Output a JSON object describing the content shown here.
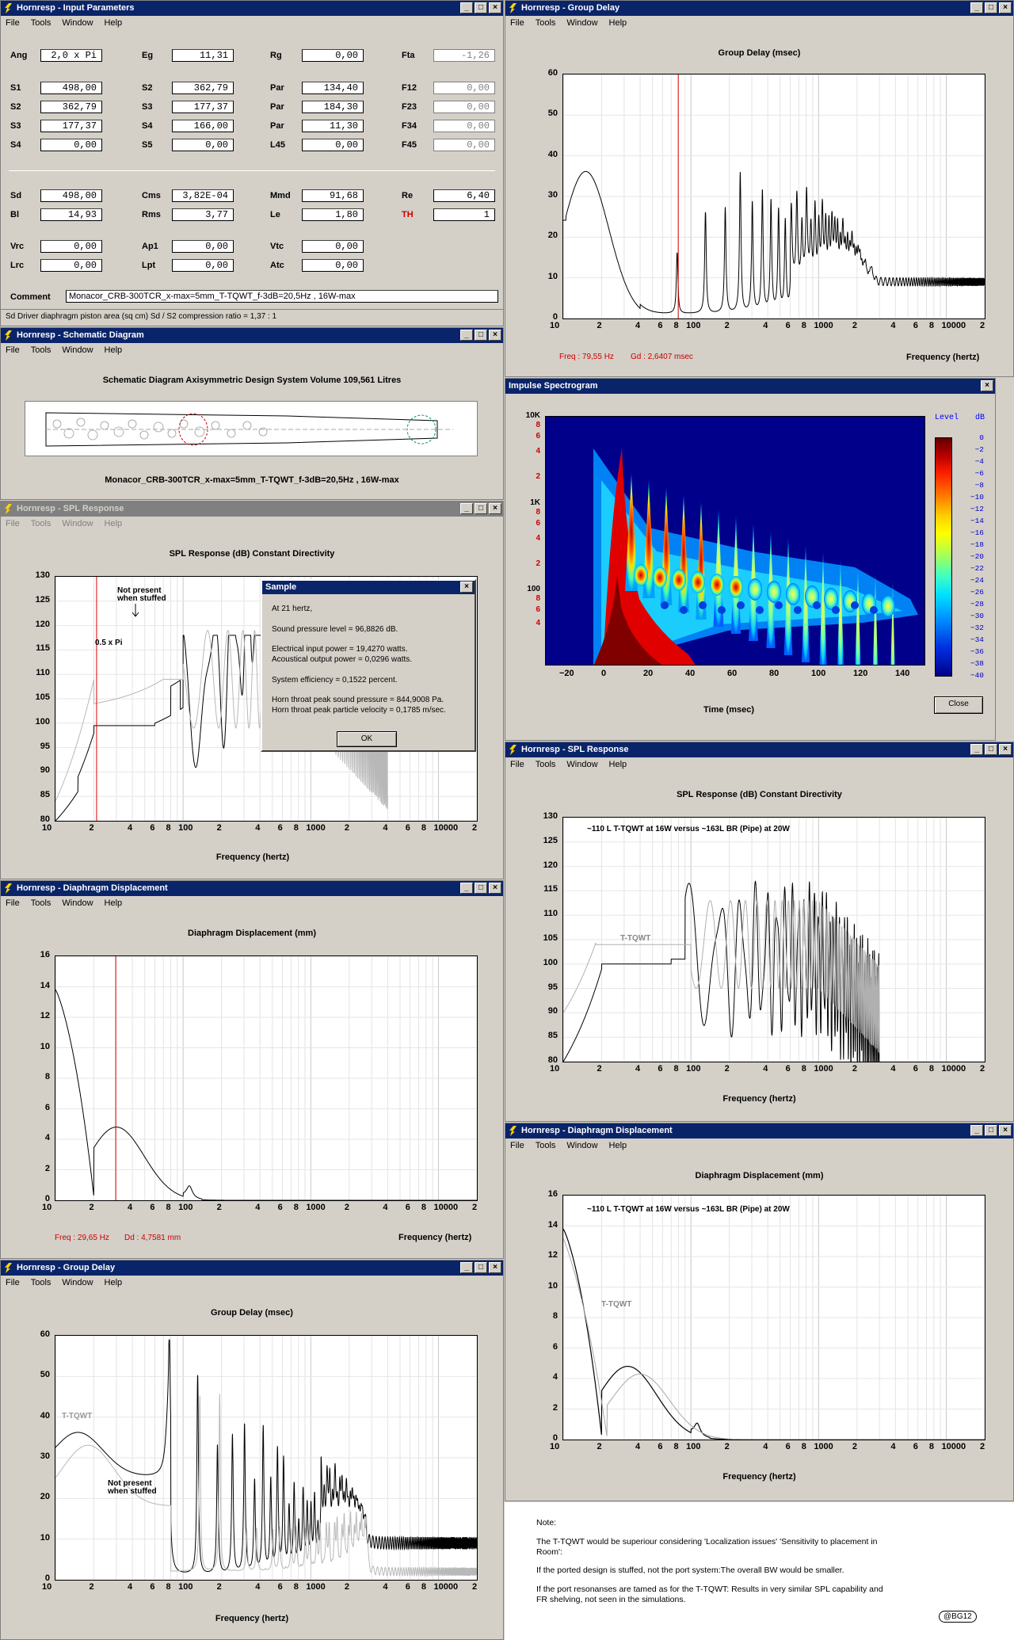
{
  "menu": [
    "File",
    "Tools",
    "Window",
    "Help"
  ],
  "win_btns": [
    "_",
    "□",
    "×"
  ],
  "input": {
    "title": "Hornresp - Input Parameters",
    "rows1": [
      [
        {
          "l": "Ang",
          "v": "2,0 x Pi"
        },
        {
          "l": "Eg",
          "v": "11,31"
        },
        {
          "l": "Rg",
          "v": "0,00"
        },
        {
          "l": "Fta",
          "v": "-1,26",
          "dis": true
        }
      ],
      [
        {
          "l": "S1",
          "v": "498,00"
        },
        {
          "l": "S2",
          "v": "362,79"
        },
        {
          "l": "Par",
          "v": "134,40"
        },
        {
          "l": "F12",
          "v": "0,00",
          "dis": true
        }
      ],
      [
        {
          "l": "S2",
          "v": "362,79"
        },
        {
          "l": "S3",
          "v": "177,37"
        },
        {
          "l": "Par",
          "v": "184,30"
        },
        {
          "l": "F23",
          "v": "0,00",
          "dis": true
        }
      ],
      [
        {
          "l": "S3",
          "v": "177,37"
        },
        {
          "l": "S4",
          "v": "166,00"
        },
        {
          "l": "Par",
          "v": "11,30"
        },
        {
          "l": "F34",
          "v": "0,00",
          "dis": true
        }
      ],
      [
        {
          "l": "S4",
          "v": "0,00"
        },
        {
          "l": "S5",
          "v": "0,00"
        },
        {
          "l": "L45",
          "v": "0,00"
        },
        {
          "l": "F45",
          "v": "0,00",
          "dis": true
        }
      ]
    ],
    "rows2": [
      [
        {
          "l": "Sd",
          "v": "498,00"
        },
        {
          "l": "Cms",
          "v": "3,82E-04"
        },
        {
          "l": "Mmd",
          "v": "91,68"
        },
        {
          "l": "Re",
          "v": "6,40"
        }
      ],
      [
        {
          "l": "Bl",
          "v": "14,93"
        },
        {
          "l": "Rms",
          "v": "3,77"
        },
        {
          "l": "Le",
          "v": "1,80"
        },
        {
          "l": "TH",
          "v": "1",
          "red": true
        }
      ]
    ],
    "rows3": [
      [
        {
          "l": "Vrc",
          "v": "0,00"
        },
        {
          "l": "Ap1",
          "v": "0,00"
        },
        {
          "l": "Vtc",
          "v": "0,00"
        }
      ],
      [
        {
          "l": "Lrc",
          "v": "0,00"
        },
        {
          "l": "Lpt",
          "v": "0,00"
        },
        {
          "l": "Atc",
          "v": "0,00"
        }
      ]
    ],
    "comment_label": "Comment",
    "comment": "Monacor_CRB-300TCR_x-max=5mm_T-TQWT_f-3dB=20,5Hz , 16W-max",
    "status": "Sd  Driver diaphragm piston area  (sq cm)     Sd / S2 compression ratio = 1,37 : 1"
  },
  "schematic": {
    "title": "Hornresp - Schematic Diagram",
    "heading": "Schematic Diagram    Axisymmetric Design    System Volume 109,561 Litres",
    "caption": "Monacor_CRB-300TCR_x-max=5mm_T-TQWT_f-3dB=20,5Hz , 16W-max"
  },
  "freq_ticks": [
    "10",
    "2",
    "4",
    "6",
    "8",
    "100",
    "2",
    "4",
    "6",
    "8",
    "1000",
    "2",
    "4",
    "6",
    "8",
    "10000",
    "2"
  ],
  "freq_label": "Frequency (hertz)",
  "gd1": {
    "title": "Hornresp - Group Delay",
    "heading": "Group Delay (msec)",
    "yticks": [
      "60",
      "50",
      "40",
      "30",
      "20",
      "10",
      "0"
    ],
    "freq_readout": "Freq : 79,55 Hz",
    "gd_readout": "Gd : 2,6407 msec"
  },
  "spectro": {
    "title": "Impulse Spectrogram",
    "yticks": [
      "10K",
      "8",
      "6",
      "4",
      "2",
      "1K",
      "8",
      "6",
      "4",
      "2",
      "100",
      "8",
      "6",
      "4"
    ],
    "xticks": [
      "−20",
      "0",
      "20",
      "40",
      "60",
      "80",
      "100",
      "120",
      "140"
    ],
    "xlabel": "Time (msec)",
    "level_label": "Level",
    "db_label": "dB",
    "levels": [
      "0",
      "−2",
      "−4",
      "−6",
      "−8",
      "−10",
      "−12",
      "−14",
      "−16",
      "−18",
      "−20",
      "−22",
      "−24",
      "−26",
      "−28",
      "−30",
      "−32",
      "−34",
      "−36",
      "−38",
      "−40"
    ],
    "close": "Close"
  },
  "spl1": {
    "title": "Hornresp - SPL Response",
    "heading": "SPL Response (dB)    Constant Directivity",
    "yticks": [
      "130",
      "125",
      "120",
      "115",
      "110",
      "105",
      "100",
      "95",
      "90",
      "85",
      "80"
    ],
    "ann_pi": "0.5 x Pi",
    "ann_np1": "Not present",
    "ann_np2": "when stuffed"
  },
  "sample": {
    "title": "Sample",
    "lines": [
      "At 21 hertz,",
      "",
      "Sound pressure level = 96,8826 dB.",
      "",
      "Electrical input power = 19,4270 watts.",
      "Acoustical output power = 0,0296 watts.",
      "",
      "System efficiency = 0,1522 percent.",
      "",
      "Horn throat peak sound pressure = 844,9008 Pa.",
      "Horn throat peak particle velocity = 0,1785 m/sec."
    ],
    "ok": "OK"
  },
  "spl2": {
    "title": "Hornresp - SPL Response",
    "heading": "SPL Response (dB)    Constant Directivity",
    "yticks": [
      "130",
      "125",
      "120",
      "115",
      "110",
      "105",
      "100",
      "95",
      "90",
      "85",
      "80"
    ],
    "subtitle": "~110 L T-TQWT at 16W versus ~163L BR (Pipe) at 20W",
    "ann": "T-TQWT"
  },
  "dd1": {
    "title": "Hornresp - Diaphragm Displacement",
    "heading": "Diaphragm Displacement (mm)",
    "yticks": [
      "16",
      "14",
      "12",
      "10",
      "8",
      "6",
      "4",
      "2",
      "0"
    ],
    "freq_readout": "Freq : 29,65 Hz",
    "dd_readout": "Dd : 4,7581 mm"
  },
  "dd2": {
    "title": "Hornresp - Diaphragm Displacement",
    "heading": "Diaphragm Displacement (mm)",
    "yticks": [
      "16",
      "14",
      "12",
      "10",
      "8",
      "6",
      "4",
      "2",
      "0"
    ],
    "subtitle": "~110 L T-TQWT at 16W versus ~163L BR (Pipe) at 20W",
    "ann": "T-TQWT"
  },
  "gd2": {
    "title": "Hornresp - Group Delay",
    "heading": "Group Delay (msec)",
    "yticks": [
      "60",
      "50",
      "40",
      "30",
      "20",
      "10",
      "0"
    ],
    "ann": "T-TQWT",
    "ann_np1": "Not present",
    "ann_np2": "when stuffed"
  },
  "note": {
    "lines": [
      "Note:",
      "The T-TQWT  would be superiour considering 'Localization issues' 'Sensitivity to placement in",
      "Room':",
      "If the ported design is stuffed, not the port system:The overall BW would be smaller.",
      "If the port resonanses are tamed as for the T-TQWT: Results in very similar SPL capability and",
      "FR shelving, not seen in the simulations."
    ],
    "sig": "@BG12"
  }
}
